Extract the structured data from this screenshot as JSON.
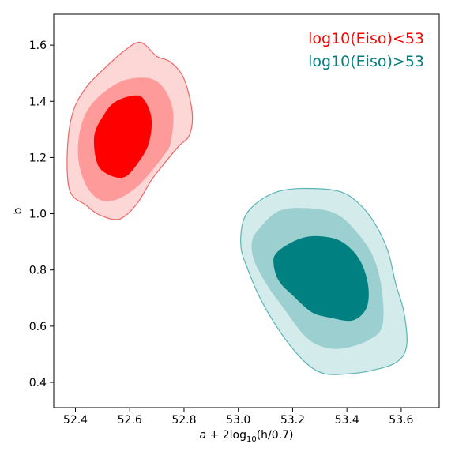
{
  "chart_data": {
    "type": "contour",
    "title": "",
    "xlabel": "a + 2log10(h/0.7)",
    "xlabel_parts": {
      "a": "a",
      "plus2log": " + 2log",
      "sub": "10",
      "rest": "(h/0.7)"
    },
    "ylabel": "b",
    "xlim": [
      52.32,
      53.74
    ],
    "ylim": [
      0.31,
      1.71
    ],
    "xticks": [
      52.4,
      52.6,
      52.8,
      53.0,
      53.2,
      53.4,
      53.6
    ],
    "xtick_labels": [
      "52.4",
      "52.6",
      "52.8",
      "53.0",
      "53.2",
      "53.4",
      "53.6"
    ],
    "yticks": [
      0.4,
      0.6,
      0.8,
      1.0,
      1.2,
      1.4,
      1.6
    ],
    "ytick_labels": [
      "0.4",
      "0.6",
      "0.8",
      "1.0",
      "1.2",
      "1.4",
      "1.6"
    ],
    "grid": false,
    "legend_position": "top-right",
    "series": [
      {
        "name": "log10(Eiso)<53",
        "text_color": "#ff0000",
        "edge_color": "#ee6666",
        "levels": [
          {
            "fill": "#fdd6d6",
            "points": [
              [
                52.44,
                1.03
              ],
              [
                52.48,
                1.0
              ],
              [
                52.54,
                0.98
              ],
              [
                52.58,
                0.99
              ],
              [
                52.63,
                1.04
              ],
              [
                52.68,
                1.12
              ],
              [
                52.72,
                1.17
              ],
              [
                52.78,
                1.24
              ],
              [
                52.82,
                1.28
              ],
              [
                52.83,
                1.36
              ],
              [
                52.8,
                1.48
              ],
              [
                52.75,
                1.54
              ],
              [
                52.7,
                1.56
              ],
              [
                52.64,
                1.61
              ],
              [
                52.58,
                1.58
              ],
              [
                52.51,
                1.52
              ],
              [
                52.44,
                1.45
              ],
              [
                52.39,
                1.36
              ],
              [
                52.37,
                1.22
              ],
              [
                52.38,
                1.08
              ]
            ]
          },
          {
            "fill": "#fe9a9a",
            "points": [
              [
                52.44,
                1.1
              ],
              [
                52.49,
                1.05
              ],
              [
                52.55,
                1.05
              ],
              [
                52.62,
                1.09
              ],
              [
                52.67,
                1.14
              ],
              [
                52.72,
                1.2
              ],
              [
                52.75,
                1.25
              ],
              [
                52.76,
                1.36
              ],
              [
                52.73,
                1.44
              ],
              [
                52.68,
                1.48
              ],
              [
                52.6,
                1.48
              ],
              [
                52.53,
                1.45
              ],
              [
                52.46,
                1.39
              ],
              [
                52.42,
                1.31
              ],
              [
                52.41,
                1.2
              ]
            ]
          },
          {
            "fill": "#ff0000",
            "points": [
              [
                52.48,
                1.18
              ],
              [
                52.52,
                1.14
              ],
              [
                52.58,
                1.13
              ],
              [
                52.63,
                1.18
              ],
              [
                52.67,
                1.25
              ],
              [
                52.68,
                1.34
              ],
              [
                52.65,
                1.41
              ],
              [
                52.61,
                1.42
              ],
              [
                52.55,
                1.4
              ],
              [
                52.51,
                1.36
              ],
              [
                52.47,
                1.28
              ]
            ]
          }
        ]
      },
      {
        "name": "log10(Eiso)>53",
        "text_color": "#008080",
        "edge_color": "#5ab4b4",
        "levels": [
          {
            "fill": "#d4ebeb",
            "points": [
              [
                53.07,
                1.04
              ],
              [
                53.15,
                1.08
              ],
              [
                53.25,
                1.09
              ],
              [
                53.37,
                1.08
              ],
              [
                53.44,
                1.04
              ],
              [
                53.5,
                0.97
              ],
              [
                53.55,
                0.87
              ],
              [
                53.58,
                0.75
              ],
              [
                53.61,
                0.65
              ],
              [
                53.62,
                0.53
              ],
              [
                53.58,
                0.47
              ],
              [
                53.48,
                0.44
              ],
              [
                53.4,
                0.43
              ],
              [
                53.32,
                0.43
              ],
              [
                53.26,
                0.46
              ],
              [
                53.2,
                0.52
              ],
              [
                53.14,
                0.6
              ],
              [
                53.08,
                0.7
              ],
              [
                53.04,
                0.79
              ],
              [
                53.01,
                0.88
              ],
              [
                53.02,
                0.98
              ]
            ]
          },
          {
            "fill": "#9ccfcf",
            "points": [
              [
                53.08,
                0.95
              ],
              [
                53.15,
                1.01
              ],
              [
                53.25,
                1.02
              ],
              [
                53.36,
                1.0
              ],
              [
                53.44,
                0.93
              ],
              [
                53.5,
                0.84
              ],
              [
                53.53,
                0.72
              ],
              [
                53.53,
                0.6
              ],
              [
                53.48,
                0.55
              ],
              [
                53.38,
                0.52
              ],
              [
                53.3,
                0.53
              ],
              [
                53.24,
                0.57
              ],
              [
                53.17,
                0.66
              ],
              [
                53.11,
                0.74
              ],
              [
                53.06,
                0.83
              ],
              [
                53.05,
                0.9
              ]
            ]
          },
          {
            "fill": "#008080",
            "points": [
              [
                53.14,
                0.86
              ],
              [
                53.2,
                0.9
              ],
              [
                53.27,
                0.92
              ],
              [
                53.36,
                0.91
              ],
              [
                53.42,
                0.87
              ],
              [
                53.46,
                0.81
              ],
              [
                53.48,
                0.73
              ],
              [
                53.47,
                0.66
              ],
              [
                53.42,
                0.62
              ],
              [
                53.34,
                0.63
              ],
              [
                53.27,
                0.65
              ],
              [
                53.2,
                0.71
              ],
              [
                53.15,
                0.76
              ],
              [
                53.13,
                0.82
              ]
            ]
          }
        ]
      }
    ]
  }
}
